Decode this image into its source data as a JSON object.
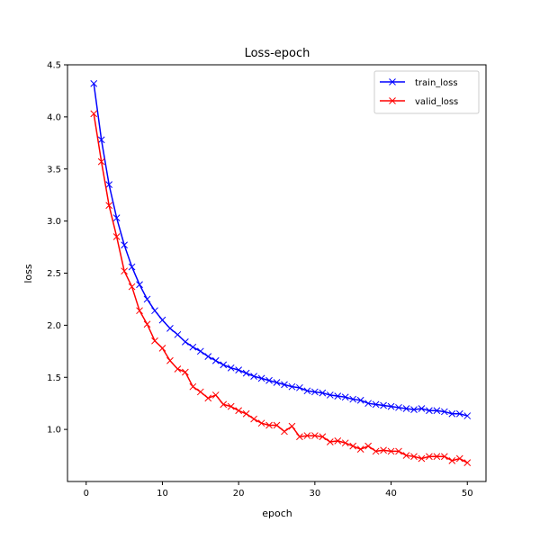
{
  "chart_data": {
    "type": "line",
    "title": "Loss-epoch",
    "xlabel": "epoch",
    "ylabel": "loss",
    "xlim": [
      -2.45,
      52.45
    ],
    "ylim": [
      0.5,
      4.5
    ],
    "xticks": [
      0,
      10,
      20,
      30,
      40,
      50
    ],
    "yticks": [
      1.0,
      1.5,
      2.0,
      2.5,
      3.0,
      3.5,
      4.0,
      4.5
    ],
    "ytick_labels": [
      "1.0",
      "1.5",
      "2.0",
      "2.5",
      "3.0",
      "3.5",
      "4.0",
      "4.5"
    ],
    "grid": false,
    "legend_position": "top-right",
    "x": [
      1,
      2,
      3,
      4,
      5,
      6,
      7,
      8,
      9,
      10,
      11,
      12,
      13,
      14,
      15,
      16,
      17,
      18,
      19,
      20,
      21,
      22,
      23,
      24,
      25,
      26,
      27,
      28,
      29,
      30,
      31,
      32,
      33,
      34,
      35,
      36,
      37,
      38,
      39,
      40,
      41,
      42,
      43,
      44,
      45,
      46,
      47,
      48,
      49,
      50
    ],
    "series": [
      {
        "name": "train_loss",
        "color": "#0000ff",
        "marker": "x",
        "values": [
          4.32,
          3.78,
          3.35,
          3.03,
          2.77,
          2.56,
          2.39,
          2.25,
          2.14,
          2.05,
          1.97,
          1.91,
          1.84,
          1.79,
          1.75,
          1.7,
          1.66,
          1.62,
          1.59,
          1.57,
          1.54,
          1.51,
          1.49,
          1.47,
          1.45,
          1.43,
          1.41,
          1.4,
          1.37,
          1.36,
          1.35,
          1.33,
          1.32,
          1.31,
          1.29,
          1.28,
          1.25,
          1.24,
          1.23,
          1.22,
          1.21,
          1.2,
          1.19,
          1.2,
          1.18,
          1.18,
          1.17,
          1.15,
          1.15,
          1.13
        ]
      },
      {
        "name": "valid_loss",
        "color": "#ff0000",
        "marker": "x",
        "values": [
          4.03,
          3.57,
          3.15,
          2.85,
          2.52,
          2.37,
          2.14,
          2.01,
          1.85,
          1.78,
          1.66,
          1.58,
          1.55,
          1.41,
          1.36,
          1.3,
          1.33,
          1.24,
          1.22,
          1.18,
          1.15,
          1.1,
          1.06,
          1.04,
          1.04,
          0.98,
          1.03,
          0.93,
          0.94,
          0.94,
          0.93,
          0.88,
          0.89,
          0.87,
          0.84,
          0.81,
          0.84,
          0.79,
          0.8,
          0.79,
          0.79,
          0.75,
          0.74,
          0.72,
          0.74,
          0.74,
          0.74,
          0.7,
          0.72,
          0.68
        ]
      }
    ]
  }
}
